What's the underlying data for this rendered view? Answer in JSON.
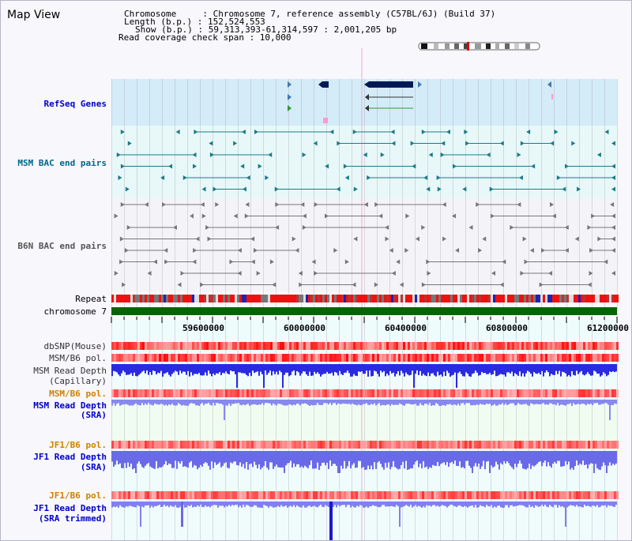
{
  "panel": {
    "title": "Map View"
  },
  "info": {
    "chromosome": "Chromosome     : Chromosome 7, reference assembly (C57BL/6J) (Build 37)",
    "length": "Length (b.p.) : 152,524,553",
    "show": "Show (b.p.) : 59,313,393-61,314,597 : 2,001,205 bp",
    "coverage": "Read coverage check span : 10,000"
  },
  "tracks": {
    "refseq": "RefSeq Genes",
    "msm_bac": "MSM BAC end pairs",
    "b6n_bac": "B6N BAC end pairs",
    "repeat": "Repeat",
    "chromosome": "chromosome 7",
    "dbsnp": "dbSNP(Mouse)",
    "msm_b6_pol_1": "MSM/B6 pol.",
    "msm_depth_cap_1": "MSM Read Depth",
    "msm_depth_cap_2": "(Capillary)",
    "msm_b6_pol_2": "MSM/B6 pol.",
    "msm_depth_sra_1": "MSM Read Depth",
    "msm_depth_sra_2": "(SRA)",
    "jf1_b6_pol_1": "JF1/B6 pol.",
    "jf1_depth_sra_1": "JF1 Read Depth",
    "jf1_depth_sra_2": "(SRA)",
    "jf1_b6_pol_2": "JF1/B6 pol.",
    "jf1_depth_trim_1": "JF1 Read Depth",
    "jf1_depth_trim_2": "(SRA trimmed)"
  },
  "axis": {
    "ticks": [
      "59600000",
      "60000000",
      "60400000",
      "60800000",
      "61200000"
    ]
  },
  "colors": {
    "refseq_label": "#0000cc",
    "msm_bac_label": "#006688",
    "b6n_bac_label": "#555555",
    "pol_orange": "#d08000",
    "depth_blue": "#0000cc",
    "chrom_green": "#006600"
  }
}
